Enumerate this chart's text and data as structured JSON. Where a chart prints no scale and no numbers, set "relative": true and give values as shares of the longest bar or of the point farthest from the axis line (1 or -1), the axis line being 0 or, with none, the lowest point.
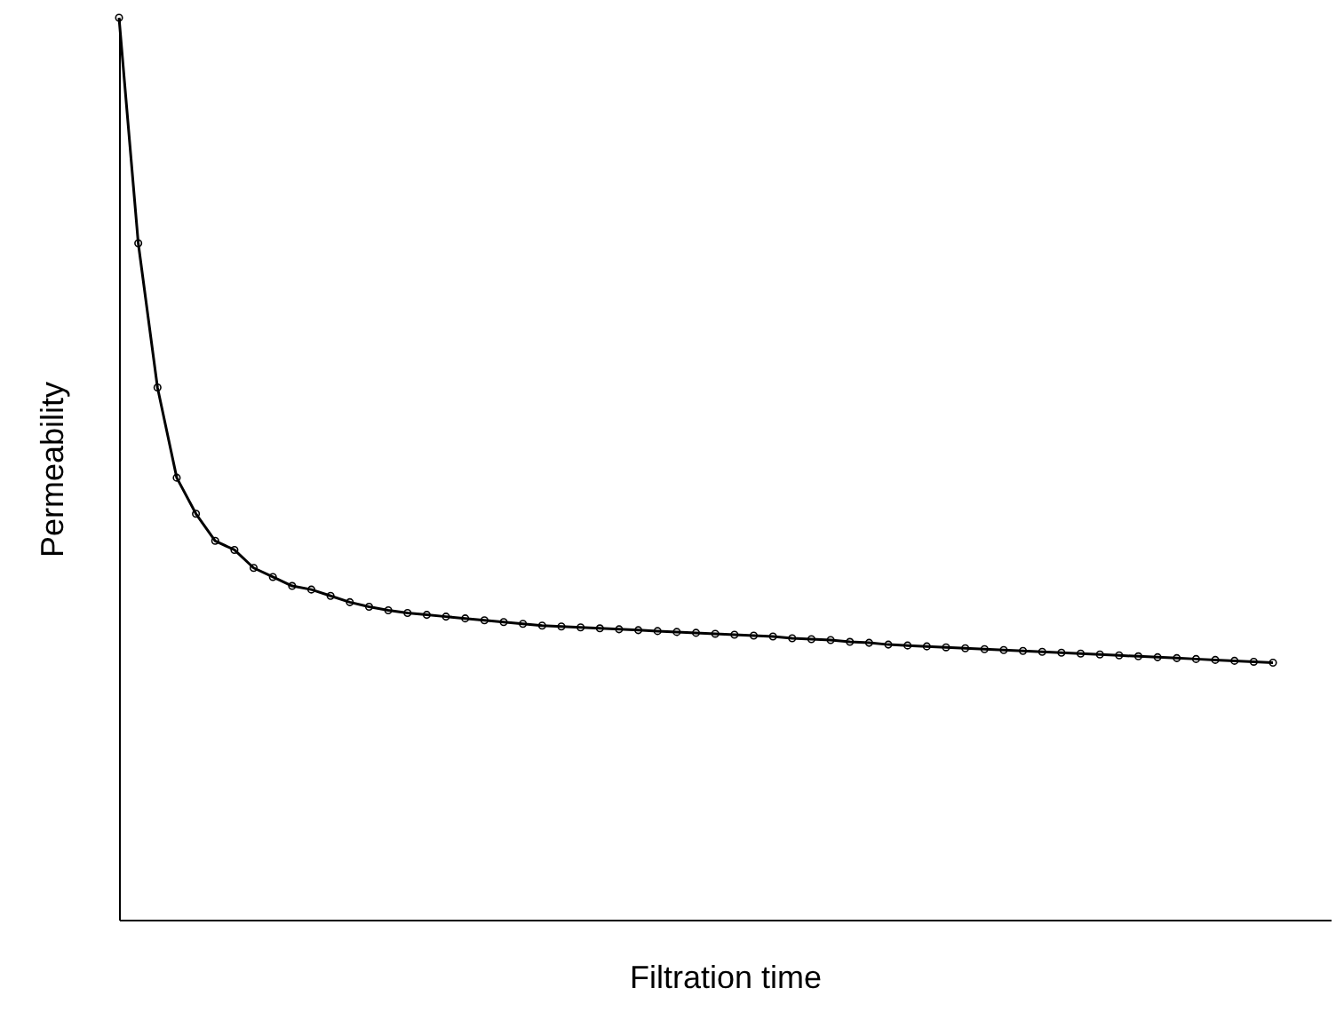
{
  "chart_data": {
    "type": "line",
    "xlabel": "Filtration time",
    "ylabel": "Permeability",
    "relative": true,
    "marker": "circle",
    "categories": [
      null,
      null,
      null,
      null,
      null,
      null,
      null,
      null,
      null,
      null,
      null,
      null,
      null,
      null,
      null,
      null,
      null,
      null,
      null,
      null,
      null,
      null,
      null,
      null,
      null,
      null,
      null,
      null,
      null,
      null,
      null,
      null,
      null,
      null,
      null,
      null,
      null,
      null,
      null,
      null,
      null,
      null,
      null,
      null,
      null,
      null,
      null,
      null,
      null,
      null,
      null,
      null,
      null,
      null,
      null,
      null,
      null,
      null,
      null,
      null,
      null,
      null,
      null,
      null
    ],
    "series": [
      {
        "color": "#000000",
        "values": [
          1.0,
          0.75,
          0.59,
          0.49,
          0.45,
          0.42,
          0.41,
          0.39,
          0.38,
          0.37,
          0.366,
          0.359,
          0.352,
          0.347,
          0.343,
          0.34,
          0.338,
          0.336,
          0.334,
          0.332,
          0.33,
          0.328,
          0.326,
          0.325,
          0.324,
          0.323,
          0.322,
          0.321,
          0.32,
          0.319,
          0.318,
          0.317,
          0.316,
          0.315,
          0.314,
          0.312,
          0.311,
          0.31,
          0.308,
          0.307,
          0.305,
          0.304,
          0.303,
          0.302,
          0.301,
          0.3,
          0.299,
          0.298,
          0.297,
          0.296,
          0.295,
          0.294,
          0.293,
          0.292,
          0.291,
          0.29,
          0.289,
          0.288,
          0.287,
          0.286,
          0.285,
          null,
          null,
          null
        ]
      }
    ]
  }
}
